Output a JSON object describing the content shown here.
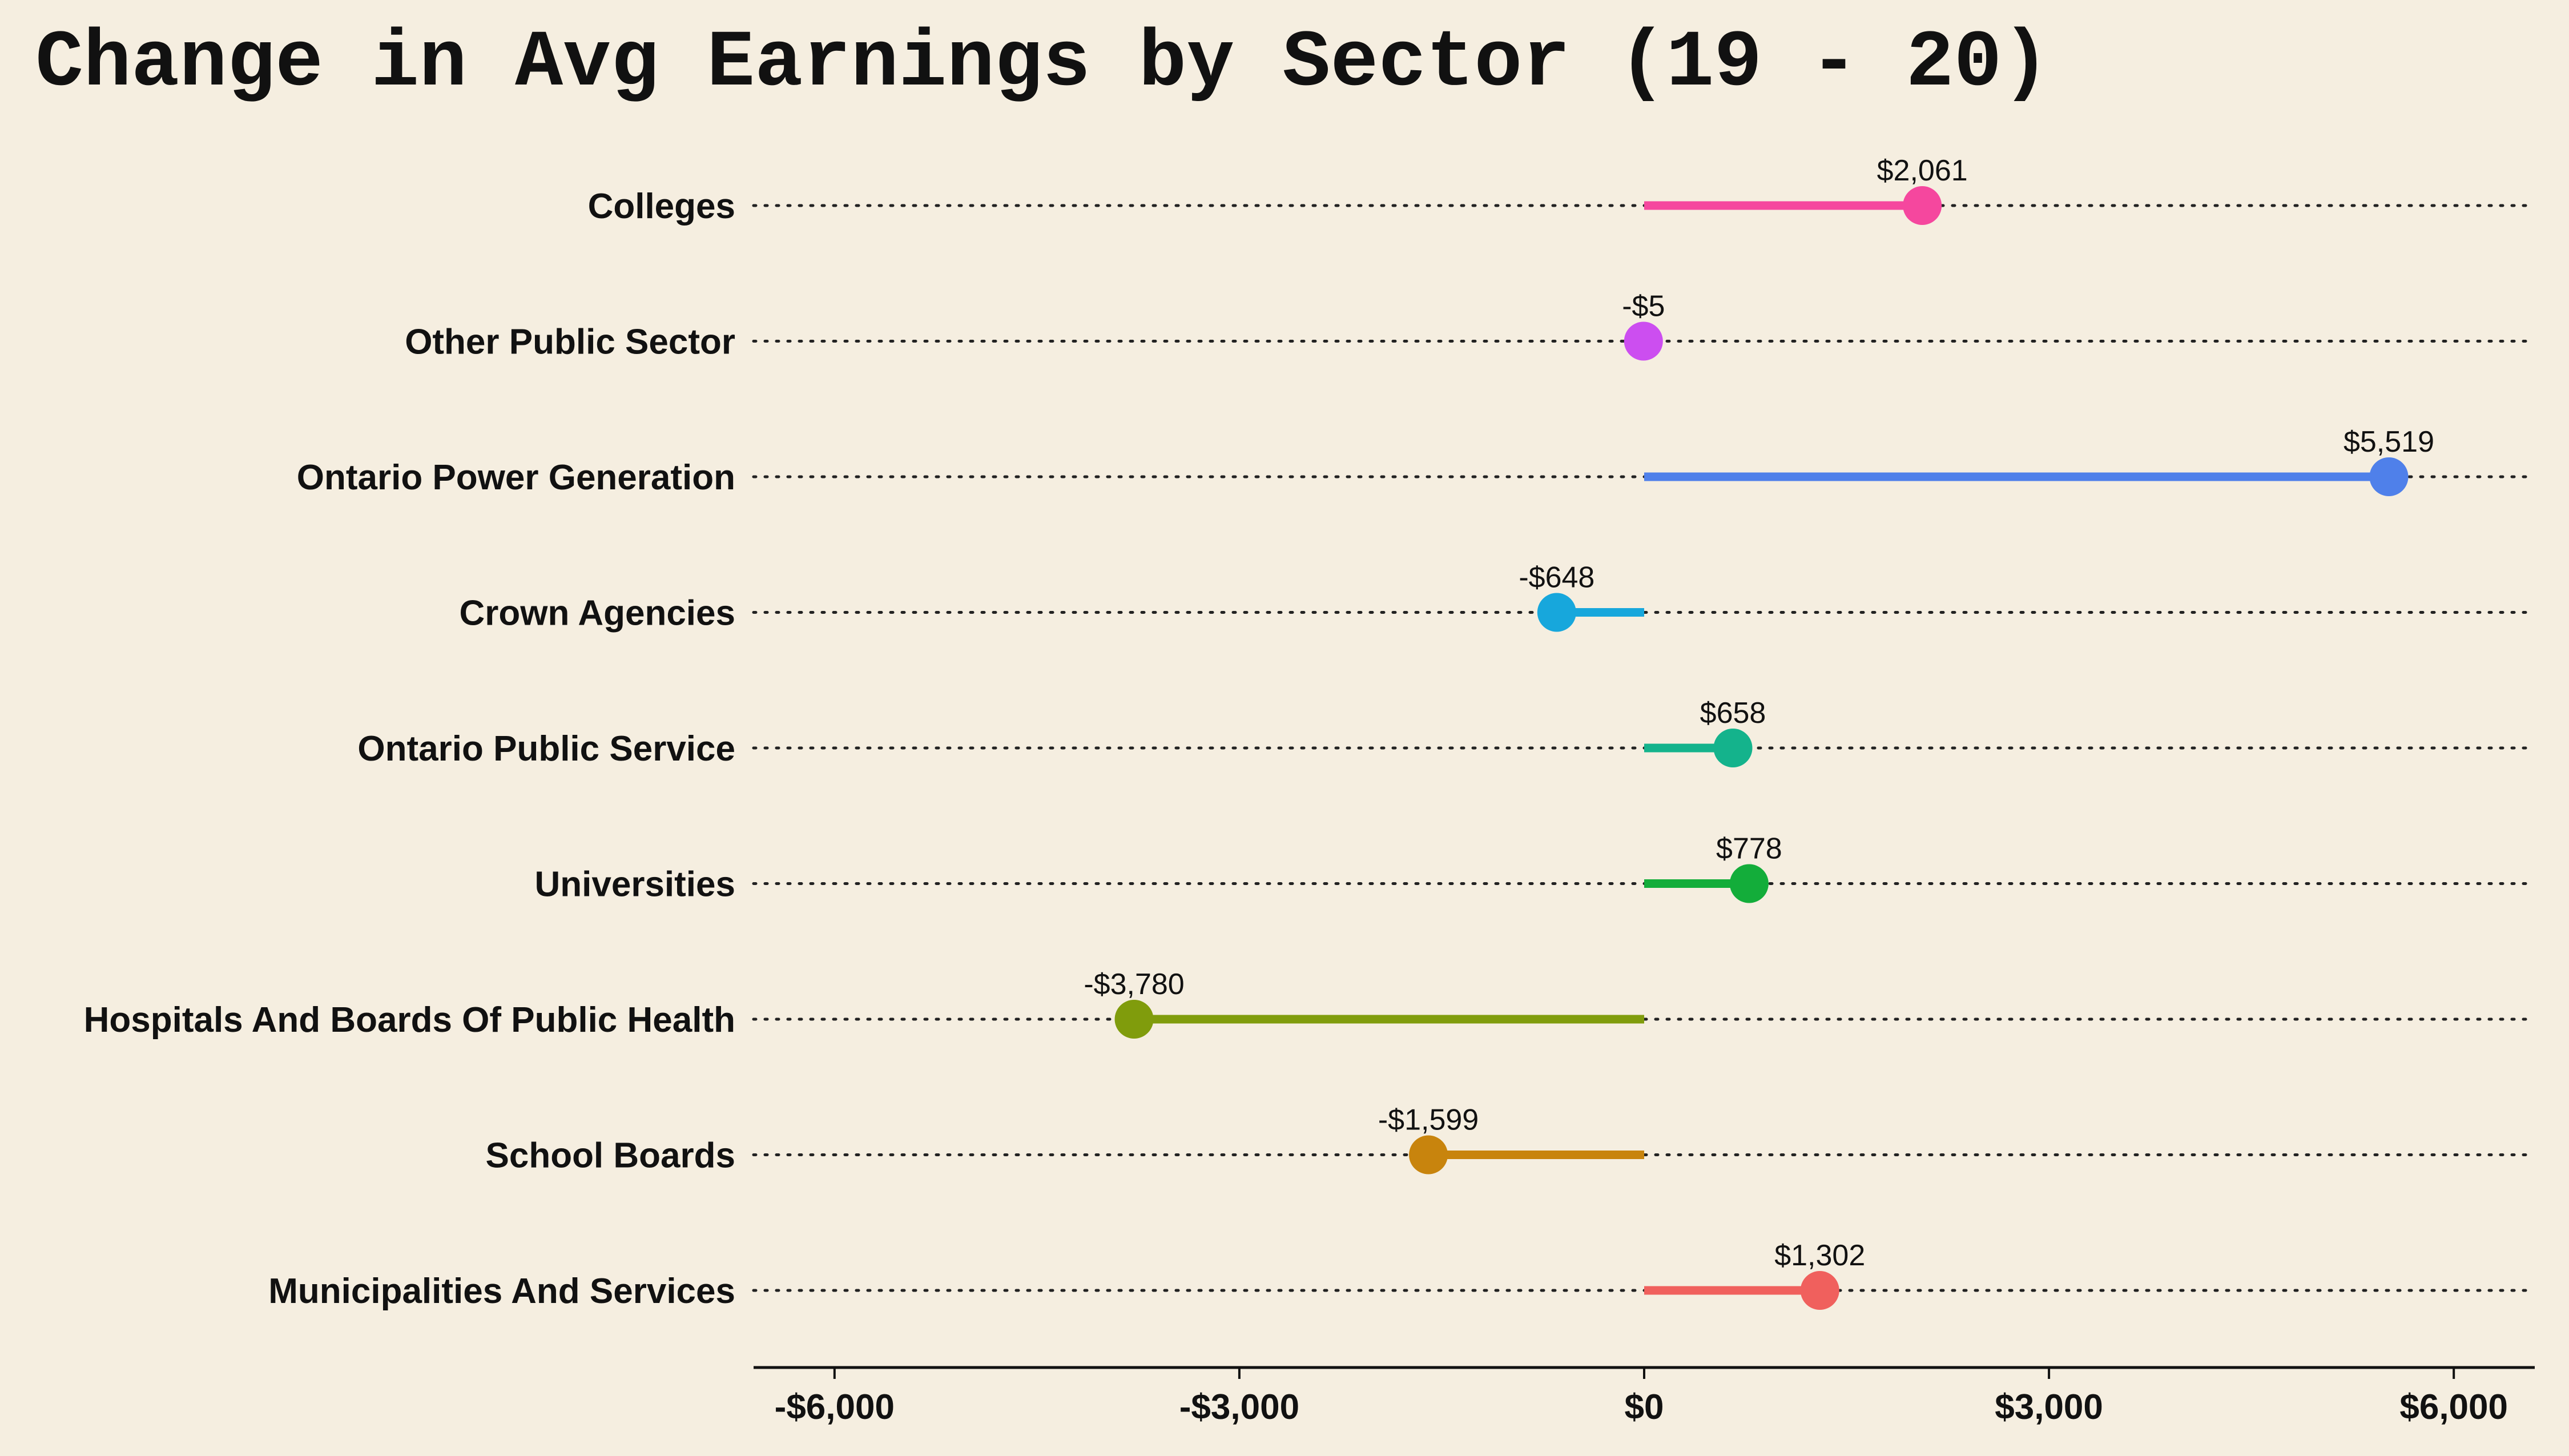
{
  "chart_data": {
    "type": "lollipop",
    "title": "Change in Avg Earnings by Sector (19 - 20)",
    "xlabel": "",
    "ylabel": "",
    "xlim": [
      -6600,
      6600
    ],
    "xticks": [
      -6000,
      -3000,
      0,
      3000,
      6000
    ],
    "xtick_labels": [
      "-$6,000",
      "-$3,000",
      "$0",
      "$3,000",
      "$6,000"
    ],
    "grid": "dotted horizontal guide per category",
    "background": "#f5eee0",
    "categories": [
      "Colleges",
      "Other Public Sector",
      "Ontario Power Generation",
      "Crown Agencies",
      "Ontario Public Service",
      "Universities",
      "Hospitals And Boards Of Public Health",
      "School Boards",
      "Municipalities And Services"
    ],
    "values": [
      2061,
      -5,
      5519,
      -648,
      658,
      778,
      -3780,
      -1599,
      1302
    ],
    "value_labels": [
      "$2,061",
      "-$5",
      "$5,519",
      "-$648",
      "$658",
      "$778",
      "-$3,780",
      "-$1,599",
      "$1,302"
    ],
    "colors": [
      "#f5479e",
      "#cc4ef0",
      "#4f80ea",
      "#17a7dc",
      "#14b38c",
      "#13ad3a",
      "#809c0c",
      "#c8840d",
      "#f0605d"
    ]
  }
}
